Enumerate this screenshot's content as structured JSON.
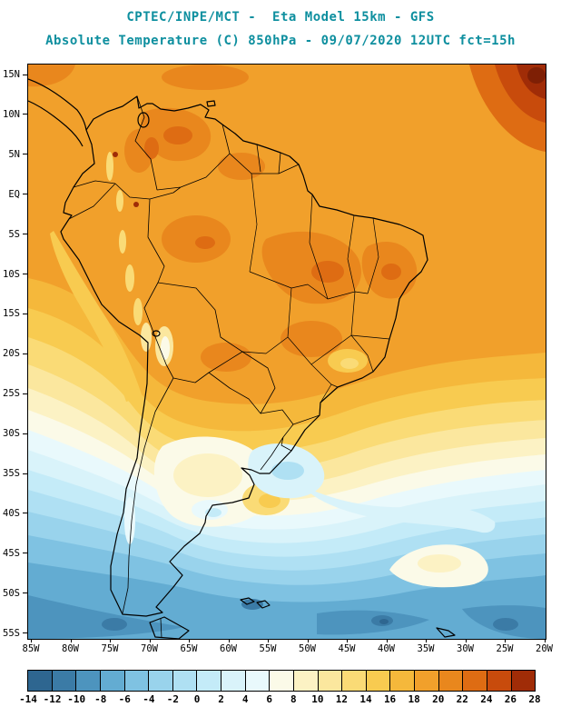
{
  "header": {
    "line1": "CPTEC/INPE/MCT -  Eta Model 15km - GFS",
    "line2": "Absolute Temperature (C) 850hPa - 09/07/2020 12UTC fct=15h",
    "title_color": "#0E8F9F"
  },
  "chart_data": {
    "type": "heatmap",
    "title": "CPTEC/INPE/MCT - Eta Model 15km - GFS",
    "subtitle": "Absolute Temperature (C) 850hPa - 09/07/2020 12UTC fct=15h",
    "variable": "Absolute Temperature",
    "unit": "C",
    "level": "850hPa",
    "valid": "09/07/2020 12UTC fct=15h",
    "lat_ticks": [
      "15N",
      "10N",
      "5N",
      "EQ",
      "5S",
      "10S",
      "15S",
      "20S",
      "25S",
      "30S",
      "35S",
      "40S",
      "45S",
      "50S",
      "55S"
    ],
    "lon_ticks": [
      "85W",
      "80W",
      "75W",
      "70W",
      "65W",
      "60W",
      "55W",
      "50W",
      "45W",
      "40W",
      "35W",
      "30W",
      "25W",
      "20W"
    ],
    "colorbar": {
      "levels": [
        -14,
        -12,
        -10,
        -8,
        -6,
        -4,
        -2,
        0,
        2,
        4,
        6,
        8,
        10,
        12,
        14,
        16,
        18,
        20,
        22,
        24,
        26,
        28
      ],
      "colors": [
        "#2E6690",
        "#3B7BA6",
        "#4D94BE",
        "#63ACD2",
        "#7FC2E2",
        "#99D3EC",
        "#AFE0F3",
        "#C4EBF8",
        "#D9F3FA",
        "#E9F9FC",
        "#FBFAE8",
        "#FCF2C4",
        "#FBE79E",
        "#FADB76",
        "#F8CB50",
        "#F5B83B",
        "#F1A02B",
        "#E9871D",
        "#DE6C13",
        "#C84B0C",
        "#A02C07"
      ],
      "over_color": "#7E1F05"
    },
    "field_summary": [
      {
        "region": "northern South America and Amazon basin",
        "approx_c": "18 to 24"
      },
      {
        "region": "tropical North Atlantic (top-right corner)",
        "approx_c": "24 to 28+"
      },
      {
        "region": "central Brazil / northeast interior",
        "approx_c": "20 to 24"
      },
      {
        "region": "southeast Brazil highlands",
        "approx_c": "10 to 16"
      },
      {
        "region": "central Argentina warm pocket",
        "approx_c": "6 to 14"
      },
      {
        "region": "Uruguay / Rio de la Plata cold tongue",
        "approx_c": "-2 to 4"
      },
      {
        "region": "southern oceans 40S-55S",
        "approx_c": "-12 to 4"
      }
    ]
  }
}
